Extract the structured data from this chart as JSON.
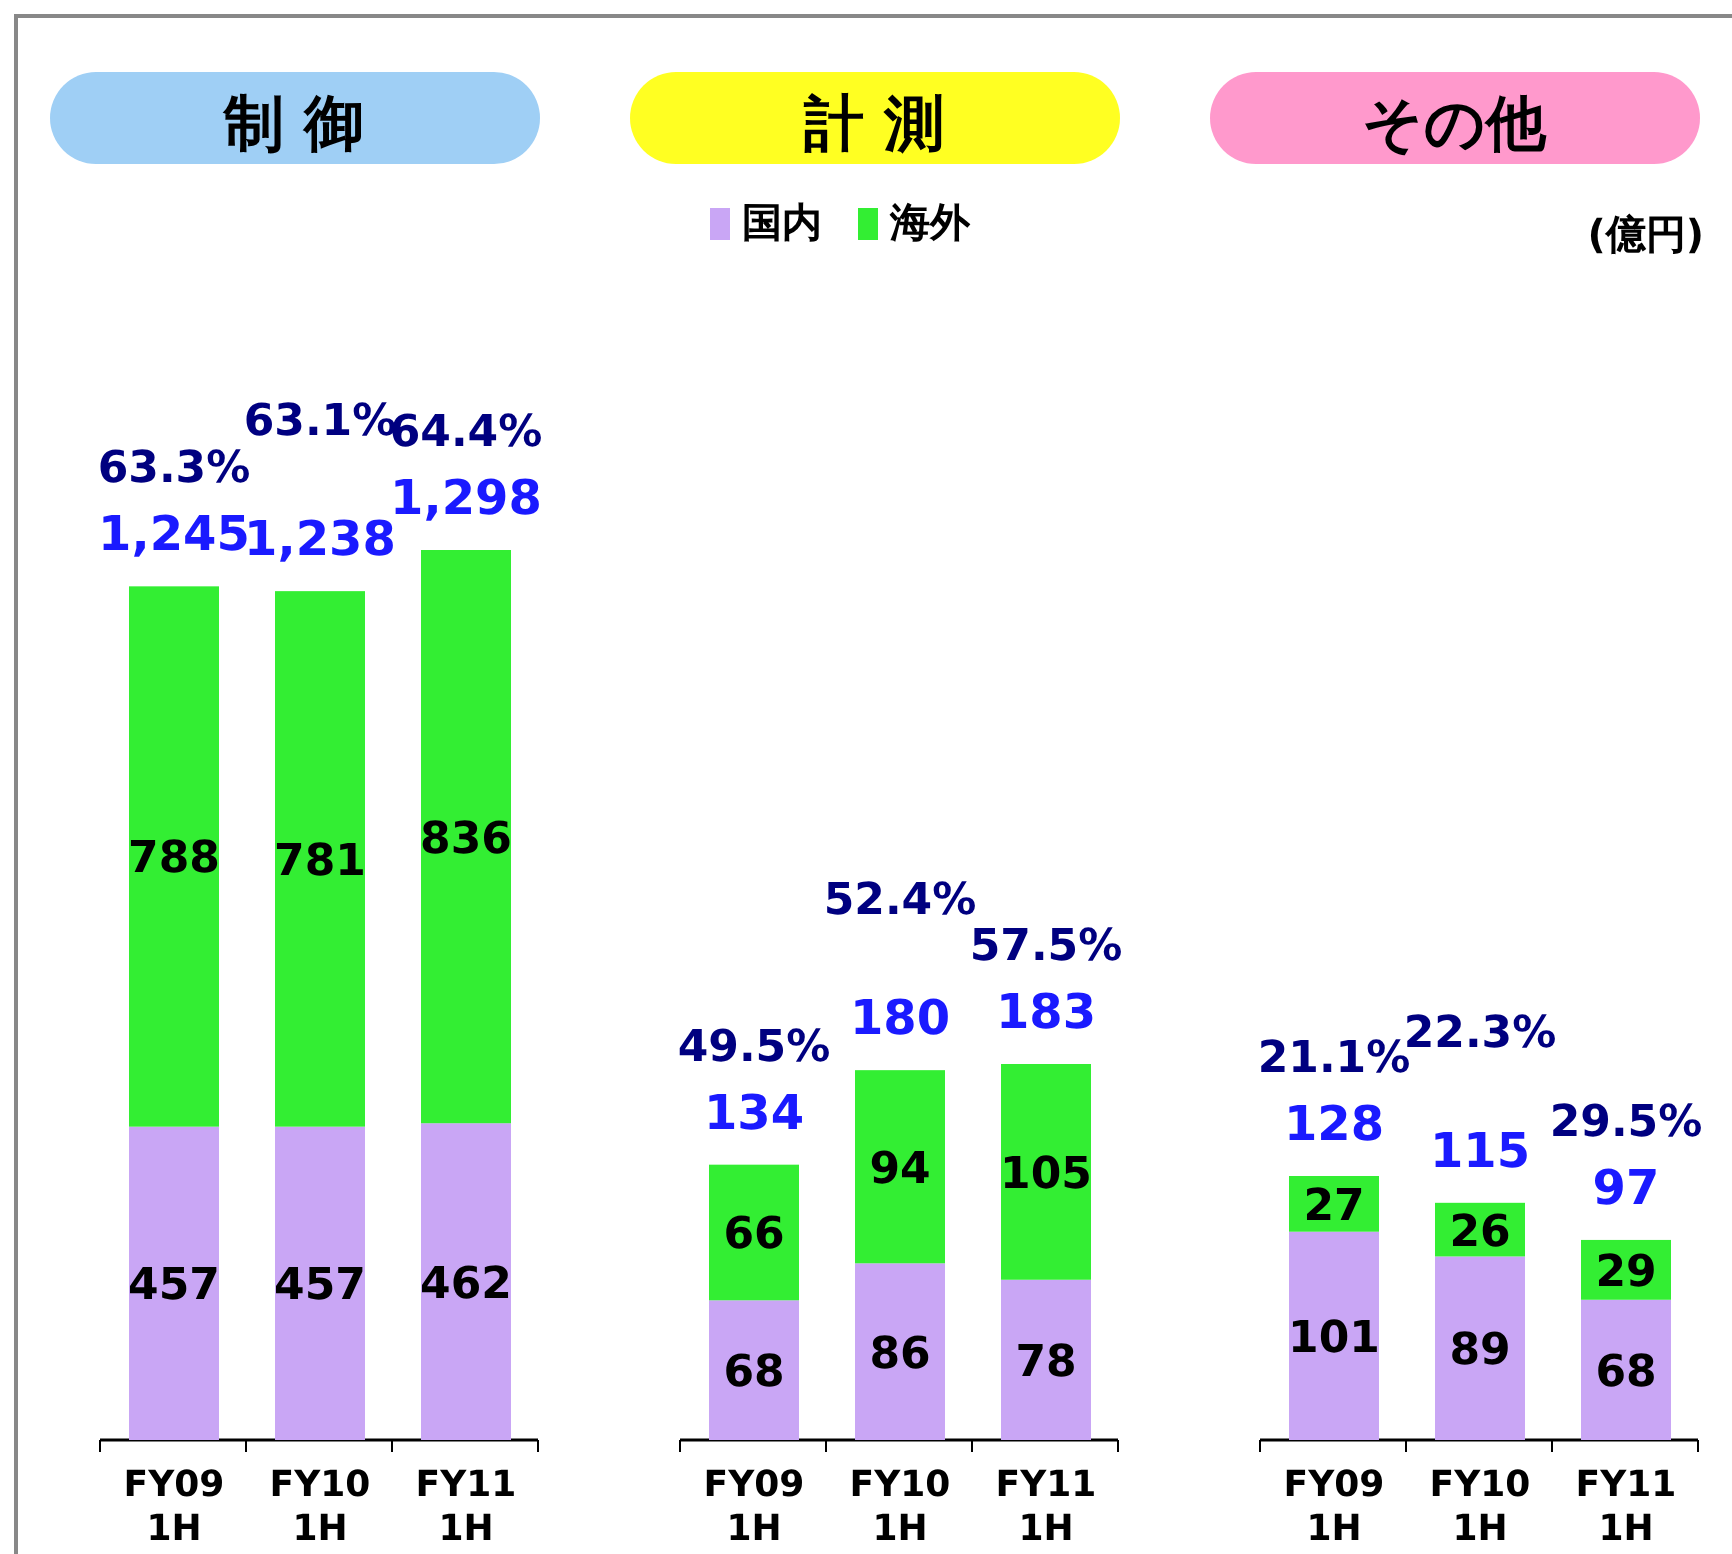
{
  "chart_data": [
    {
      "type": "bar",
      "title": "制 御",
      "stacked": true,
      "data_labels": true,
      "categories": [
        "FY09 1H",
        "FY10 1H",
        "FY11 1H"
      ],
      "series": [
        {
          "color": "#c9a6f5",
          "values": [
            457,
            457,
            462
          ]
        },
        {
          "color": "#33ee33",
          "values": [
            788,
            781,
            836
          ]
        }
      ],
      "totals": [
        "1,245",
        "1,238",
        "1,298"
      ],
      "annotations": [
        "63.3%",
        "63.1%",
        "64.4%"
      ]
    },
    {
      "type": "bar",
      "title": "計 測",
      "stacked": true,
      "data_labels": true,
      "legend": "top",
      "categories": [
        "FY09 1H",
        "FY10 1H",
        "FY11 1H"
      ],
      "series": [
        {
          "name": "国内",
          "color": "#c9a6f5",
          "values": [
            68,
            86,
            78
          ]
        },
        {
          "name": "海外",
          "color": "#33ee33",
          "values": [
            66,
            94,
            105
          ]
        }
      ],
      "totals": [
        "134",
        "180",
        "183"
      ],
      "annotations": [
        "49.5%",
        "52.4%",
        "57.5%"
      ]
    },
    {
      "type": "bar",
      "title": "その他",
      "stacked": true,
      "data_labels": true,
      "categories": [
        "FY09 1H",
        "FY10 1H",
        "FY11 1H"
      ],
      "series": [
        {
          "color": "#c9a6f5",
          "values": [
            101,
            89,
            68
          ]
        },
        {
          "color": "#33ee33",
          "values": [
            27,
            26,
            29
          ]
        }
      ],
      "totals": [
        "128",
        "115",
        "97"
      ],
      "annotations": [
        "21.1%",
        "22.3%",
        "29.5%",
        "(億円)"
      ]
    }
  ]
}
